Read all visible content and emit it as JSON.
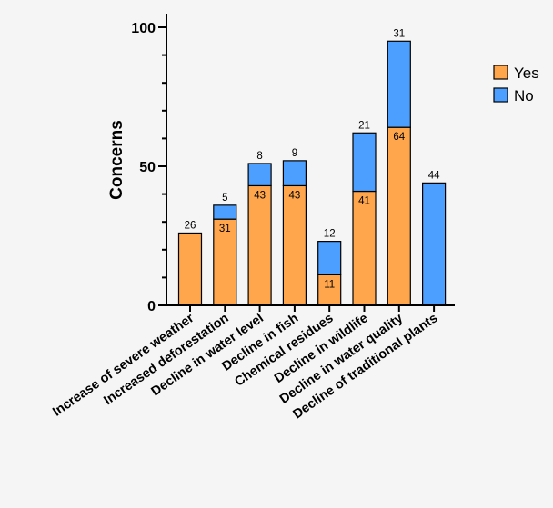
{
  "chart_data": {
    "type": "bar",
    "stacked": true,
    "categories": [
      "Increase of severe weather",
      "Increased deforestation",
      "Decline in water level",
      "Decline in fish",
      "Chemical residues",
      "Decline in wildlife",
      "Decline in water quality",
      "Decline of traditional plants"
    ],
    "series": [
      {
        "name": "Yes",
        "color": "#ffa64d",
        "values": [
          26,
          31,
          43,
          43,
          11,
          41,
          64,
          0
        ]
      },
      {
        "name": "No",
        "color": "#4d9fff",
        "values": [
          0,
          5,
          8,
          9,
          12,
          21,
          31,
          44
        ]
      }
    ],
    "ylabel": "Concerns",
    "xlabel": "",
    "ylim": [
      0,
      100
    ],
    "yticks": [
      0,
      50,
      100
    ],
    "grid": false,
    "legend_position": "right"
  }
}
